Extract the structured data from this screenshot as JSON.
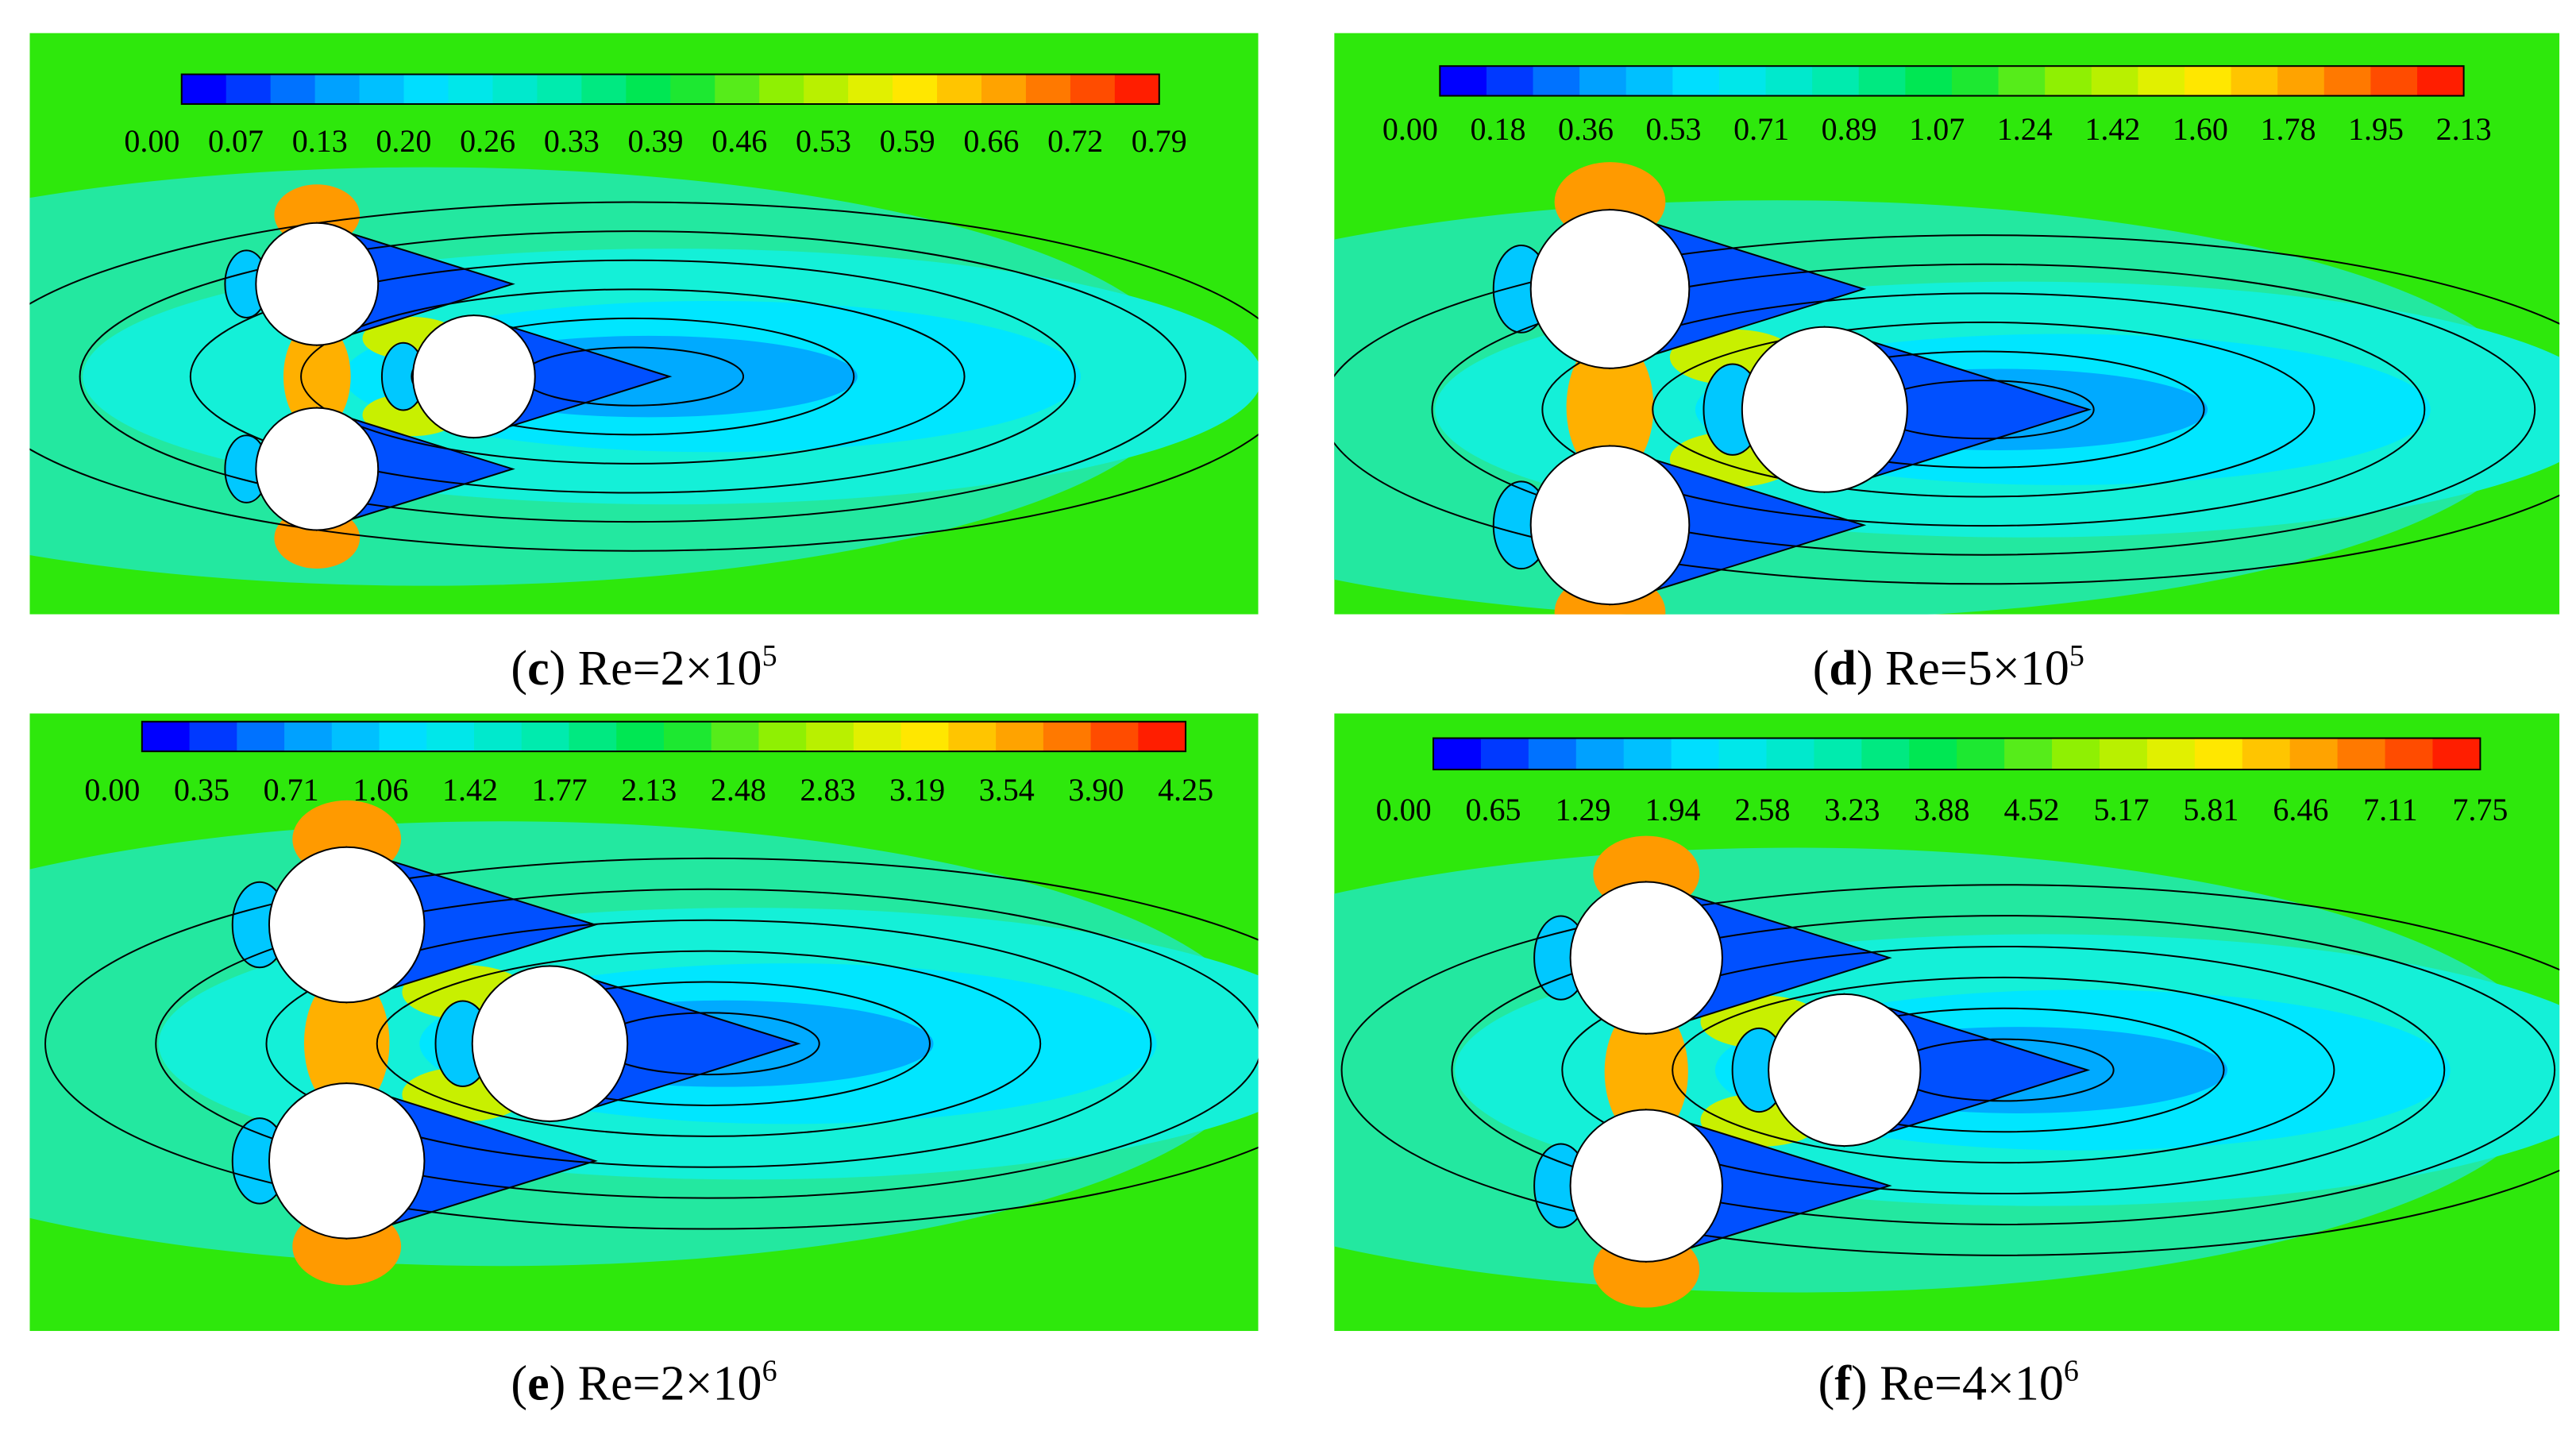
{
  "panels": [
    {
      "colorbar_ticks": [
        "0.00",
        "0.07",
        "0.13",
        "0.20",
        "0.26",
        "0.33",
        "0.39",
        "0.46",
        "0.53",
        "0.59",
        "0.66",
        "0.72",
        "0.79"
      ],
      "caption": [
        {
          "text": "("
        },
        {
          "text": "c",
          "bold": true
        },
        {
          "text": ") Re=2×10"
        },
        {
          "text": "5",
          "sup": true
        }
      ]
    },
    {
      "colorbar_ticks": [
        "0.00",
        "0.18",
        "0.36",
        "0.53",
        "0.71",
        "0.89",
        "1.07",
        "1.24",
        "1.42",
        "1.60",
        "1.78",
        "1.95",
        "2.13"
      ],
      "caption": [
        {
          "text": "("
        },
        {
          "text": "d",
          "bold": true
        },
        {
          "text": ") Re=5×10"
        },
        {
          "text": "5",
          "sup": true
        }
      ]
    },
    {
      "colorbar_ticks": [
        "0.00",
        "0.35",
        "0.71",
        "1.06",
        "1.42",
        "1.77",
        "2.13",
        "2.48",
        "2.83",
        "3.19",
        "3.54",
        "3.90",
        "4.25"
      ],
      "caption": [
        {
          "text": "("
        },
        {
          "text": "e",
          "bold": true
        },
        {
          "text": ") Re=2×10"
        },
        {
          "text": "6",
          "sup": true
        }
      ]
    },
    {
      "colorbar_ticks": [
        "0.00",
        "0.65",
        "1.29",
        "1.94",
        "2.58",
        "3.23",
        "3.88",
        "4.52",
        "5.17",
        "5.81",
        "6.46",
        "7.11",
        "7.75"
      ],
      "caption": [
        {
          "text": "("
        },
        {
          "text": "f",
          "bold": true
        },
        {
          "text": ") Re=4×10"
        },
        {
          "text": "6",
          "sup": true
        }
      ]
    }
  ]
}
